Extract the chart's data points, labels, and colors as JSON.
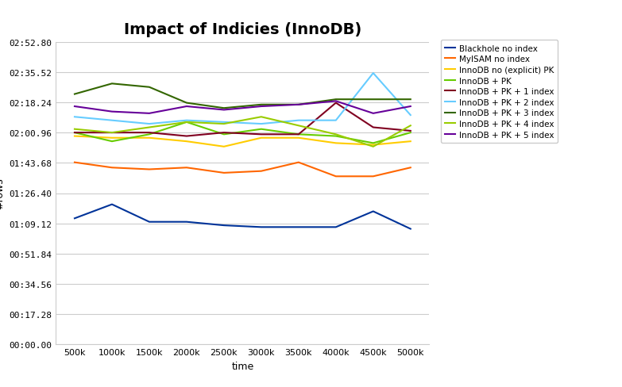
{
  "title": "Impact of Indicies (InnoDB)",
  "xlabel": "time",
  "ylabel": "#rows",
  "x_labels": [
    "500k",
    "1000k",
    "1500k",
    "2000k",
    "2500k",
    "3000k",
    "3500k",
    "4000k",
    "4500k",
    "5000k"
  ],
  "x_values": [
    500,
    1000,
    1500,
    2000,
    2500,
    3000,
    3500,
    4000,
    4500,
    5000
  ],
  "ytick_seconds": [
    0,
    17.28,
    34.56,
    51.84,
    69.12,
    86.4,
    103.68,
    120.96,
    138.24,
    155.52,
    172.8
  ],
  "ytick_labels": [
    "00:00.00",
    "00:17.28",
    "00:34.56",
    "00:51.84",
    "01:09.12",
    "01:26.40",
    "01:43.68",
    "02:00.96",
    "02:18.24",
    "02:35.52",
    "02:52.80"
  ],
  "series": [
    {
      "label": "Blackhole no index",
      "color": "#003399",
      "values": [
        72,
        80,
        70,
        70,
        68,
        67,
        67,
        67,
        76,
        66
      ]
    },
    {
      "label": "MyISAM no index",
      "color": "#FF6600",
      "values": [
        104,
        101,
        100,
        101,
        98,
        99,
        104,
        96,
        96,
        101
      ]
    },
    {
      "label": "InnoDB no (explicit) PK",
      "color": "#FFCC00",
      "values": [
        119,
        118,
        118,
        116,
        113,
        118,
        118,
        115,
        114,
        116
      ]
    },
    {
      "label": "InnoDB + PK",
      "color": "#66CC00",
      "values": [
        121,
        116,
        120,
        127,
        120,
        123,
        120,
        119,
        115,
        121
      ]
    },
    {
      "label": "InnoDB + PK + 1 index",
      "color": "#800020",
      "values": [
        121,
        121,
        121,
        119,
        121,
        120,
        120,
        138,
        124,
        122
      ]
    },
    {
      "label": "InnoDB + PK + 2 index",
      "color": "#66CCFF",
      "values": [
        130,
        128,
        126,
        128,
        127,
        126,
        128,
        128,
        155,
        131
      ]
    },
    {
      "label": "InnoDB + PK + 3 index",
      "color": "#336600",
      "values": [
        143,
        149,
        147,
        138,
        135,
        137,
        137,
        140,
        140,
        140
      ]
    },
    {
      "label": "InnoDB + PK + 4 index",
      "color": "#99CC00",
      "values": [
        123,
        121,
        124,
        127,
        126,
        130,
        125,
        120,
        113,
        125
      ]
    },
    {
      "label": "InnoDB + PK + 5 index",
      "color": "#660099",
      "values": [
        136,
        133,
        132,
        136,
        134,
        136,
        137,
        139,
        132,
        136
      ]
    }
  ],
  "bg_color": "#ffffff",
  "grid_color": "#cccccc",
  "ylim": [
    0,
    172.8
  ],
  "title_fontsize": 14,
  "axis_label_fontsize": 9,
  "tick_fontsize": 8,
  "legend_fontsize": 7.5
}
